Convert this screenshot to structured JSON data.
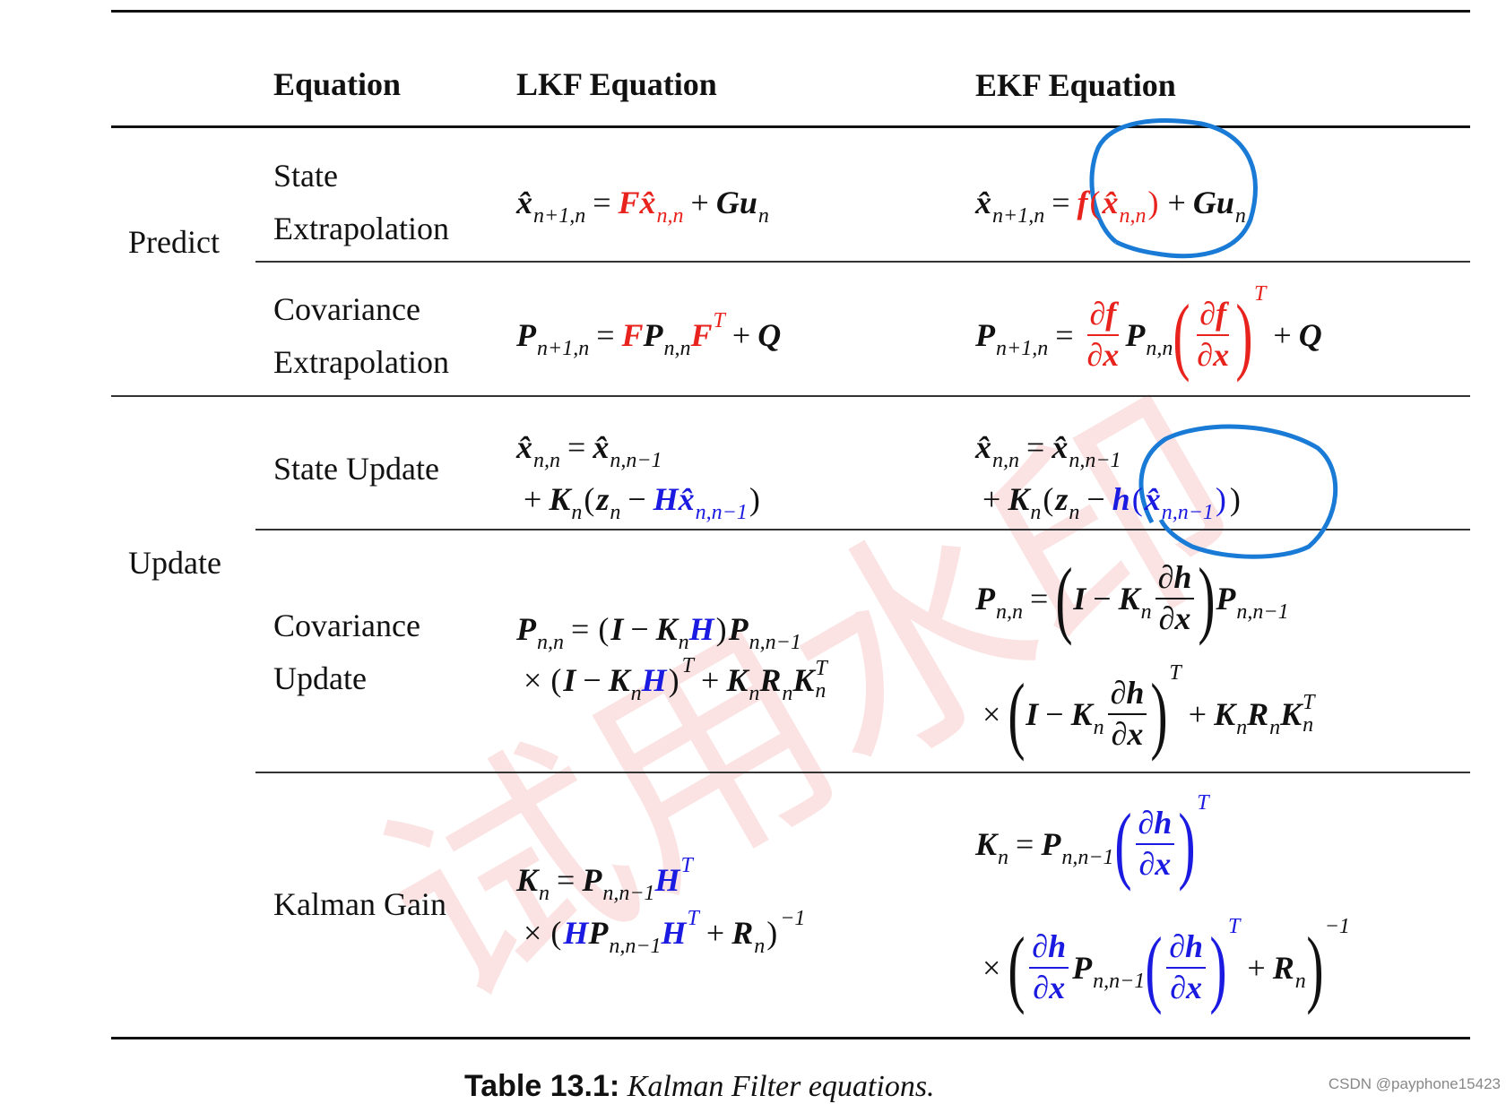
{
  "header": {
    "columns": [
      "Equation",
      "LKF Equation",
      "EKF Equation"
    ]
  },
  "groups": [
    {
      "label": "Predict",
      "rows": [
        {
          "label": [
            "State",
            "Extrapolation"
          ],
          "lkf": [
            [
              {
                "t": "x̂",
                "sub": "n+1,n"
              },
              {
                "t": "="
              },
              {
                "t": "F",
                "color": "#e8221c"
              },
              {
                "t": "x̂",
                "sub": "n,n",
                "color": "#e8221c"
              },
              {
                "t": "+"
              },
              {
                "t": "G"
              },
              {
                "t": "u",
                "sub": "n"
              }
            ]
          ],
          "ekf": [
            [
              {
                "t": "x̂",
                "sub": "n+1,n"
              },
              {
                "t": "="
              },
              {
                "t": "f",
                "color": "#e8221c"
              },
              {
                "t": "(",
                "color": "#e8221c"
              },
              {
                "t": "x̂",
                "sub": "n,n",
                "color": "#e8221c"
              },
              {
                "t": ")",
                "color": "#e8221c"
              },
              {
                "t": "+"
              },
              {
                "t": "G"
              },
              {
                "t": "u",
                "sub": "n"
              }
            ]
          ]
        },
        {
          "label": [
            "Covariance",
            "Extrapolation"
          ],
          "lkf": [
            [
              {
                "t": "P",
                "sub": "n+1,n"
              },
              {
                "t": "="
              },
              {
                "t": "F",
                "color": "#e8221c"
              },
              {
                "t": "P",
                "sub": "n,n"
              },
              {
                "t": "F",
                "sup": "T",
                "color": "#e8221c"
              },
              {
                "t": "+"
              },
              {
                "t": "Q"
              }
            ]
          ],
          "ekf": [
            [
              {
                "t": "P",
                "sub": "n+1,n"
              },
              {
                "t": "="
              },
              {
                "num": "∂f",
                "den": "∂x",
                "color": "#e8221c"
              },
              {
                "t": "P",
                "sub": "n,n"
              },
              {
                "t": "(",
                "color": "#e8221c"
              },
              {
                "num": "∂f",
                "den": "∂x",
                "color": "#e8221c"
              },
              {
                "t": ")",
                "sup": "T",
                "color": "#e8221c"
              },
              {
                "t": "+"
              },
              {
                "t": "Q"
              }
            ]
          ]
        }
      ]
    },
    {
      "label": "Update",
      "rows": [
        {
          "label": [
            "State Update"
          ],
          "lkf": [
            [
              {
                "t": "x̂",
                "sub": "n,n"
              },
              {
                "t": "="
              },
              {
                "t": "x̂",
                "sub": "n,n−1"
              }
            ],
            [
              {
                "t": "+"
              },
              {
                "t": "K",
                "sub": "n"
              },
              {
                "t": "("
              },
              {
                "t": "z",
                "sub": "n"
              },
              {
                "t": "−"
              },
              {
                "t": "H",
                "color": "#1a1ae0"
              },
              {
                "t": "x̂",
                "sub": "n,n−1",
                "color": "#1a1ae0"
              },
              {
                "t": ")"
              }
            ]
          ],
          "ekf": [
            [
              {
                "t": "x̂",
                "sub": "n,n"
              },
              {
                "t": "="
              },
              {
                "t": "x̂",
                "sub": "n,n−1"
              }
            ],
            [
              {
                "t": "+"
              },
              {
                "t": "K",
                "sub": "n"
              },
              {
                "t": "("
              },
              {
                "t": "z",
                "sub": "n"
              },
              {
                "t": "−"
              },
              {
                "t": "h",
                "color": "#1a1ae0"
              },
              {
                "t": "(",
                "color": "#1a1ae0"
              },
              {
                "t": "x̂",
                "sub": "n,n−1",
                "color": "#1a1ae0"
              },
              {
                "t": ")",
                "color": "#1a1ae0"
              },
              {
                "t": ")"
              }
            ]
          ]
        },
        {
          "label": [
            "Covariance",
            "Update"
          ],
          "lkf": [
            [
              {
                "t": "P",
                "sub": "n,n"
              },
              {
                "t": "="
              },
              {
                "t": "("
              },
              {
                "t": "I"
              },
              {
                "t": "−"
              },
              {
                "t": "K",
                "sub": "n"
              },
              {
                "t": "H",
                "color": "#1a1ae0"
              },
              {
                "t": ")"
              },
              {
                "t": "P",
                "sub": "n,n−1"
              }
            ],
            [
              {
                "t": "×"
              },
              {
                "t": "("
              },
              {
                "t": "I"
              },
              {
                "t": "−"
              },
              {
                "t": "K",
                "sub": "n"
              },
              {
                "t": "H",
                "color": "#1a1ae0"
              },
              {
                "t": ")",
                "sup": "T"
              },
              {
                "t": "+"
              },
              {
                "t": "K",
                "sub": "n"
              },
              {
                "t": "R",
                "sub": "n"
              },
              {
                "t": "K",
                "sub": "n",
                "sup": "T"
              }
            ]
          ],
          "ekf": [
            [
              {
                "t": "P",
                "sub": "n,n"
              },
              {
                "t": "="
              },
              {
                "t": "("
              },
              {
                "t": "I"
              },
              {
                "t": "−"
              },
              {
                "t": "K",
                "sub": "n"
              },
              {
                "num": "∂h",
                "den": "∂x"
              },
              {
                "t": ")"
              },
              {
                "t": "P",
                "sub": "n,n−1"
              }
            ],
            [
              {
                "t": "×"
              },
              {
                "t": "("
              },
              {
                "t": "I"
              },
              {
                "t": "−"
              },
              {
                "t": "K",
                "sub": "n"
              },
              {
                "num": "∂h",
                "den": "∂x"
              },
              {
                "t": ")",
                "sup": "T"
              },
              {
                "t": "+"
              },
              {
                "t": "K",
                "sub": "n"
              },
              {
                "t": "R",
                "sub": "n"
              },
              {
                "t": "K",
                "sub": "n",
                "sup": "T"
              }
            ]
          ]
        },
        {
          "label": [
            "Kalman Gain"
          ],
          "lkf": [
            [
              {
                "t": "K",
                "sub": "n"
              },
              {
                "t": "="
              },
              {
                "t": "P",
                "sub": "n,n−1"
              },
              {
                "t": "H",
                "sup": "T",
                "color": "#1a1ae0"
              }
            ],
            [
              {
                "t": "×"
              },
              {
                "t": "("
              },
              {
                "t": "H",
                "color": "#1a1ae0"
              },
              {
                "t": "P",
                "sub": "n,n−1"
              },
              {
                "t": "H",
                "sup": "T",
                "color": "#1a1ae0"
              },
              {
                "t": "+"
              },
              {
                "t": "R",
                "sub": "n"
              },
              {
                "t": ")",
                "sup": "−1"
              }
            ]
          ],
          "ekf": [
            [
              {
                "t": "K",
                "sub": "n"
              },
              {
                "t": "="
              },
              {
                "t": "P",
                "sub": "n,n−1"
              },
              {
                "t": "(",
                "color": "#1a1ae0"
              },
              {
                "num": "∂h",
                "den": "∂x",
                "color": "#1a1ae0"
              },
              {
                "t": ")",
                "sup": "T",
                "color": "#1a1ae0"
              }
            ],
            [
              {
                "t": "×"
              },
              {
                "t": "("
              },
              {
                "num": "∂h",
                "den": "∂x",
                "color": "#1a1ae0"
              },
              {
                "t": "P",
                "sub": "n,n−1"
              },
              {
                "t": "(",
                "color": "#1a1ae0"
              },
              {
                "num": "∂h",
                "den": "∂x",
                "color": "#1a1ae0"
              },
              {
                "t": ")",
                "sup": "T",
                "color": "#1a1ae0"
              },
              {
                "t": "+"
              },
              {
                "t": "R",
                "sub": "n"
              },
              {
                "t": ")",
                "sup": "−1"
              }
            ]
          ]
        }
      ]
    }
  ],
  "caption": {
    "label": "Table 13.1:",
    "text": "Kalman Filter equations."
  },
  "watermark": "试用水印",
  "credit": "CSDN @payphone15423"
}
